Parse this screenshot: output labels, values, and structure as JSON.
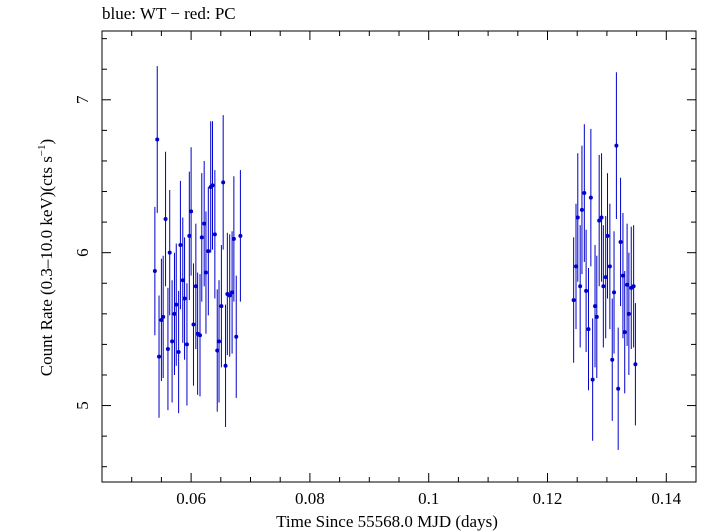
{
  "chart_data": {
    "type": "scatter",
    "title": "blue: WT − red: PC",
    "xlabel": "Time Since 55568.0 MJD (days)",
    "ylabel_prefix": "Count Rate (0.3–10.0 keV)(cts s",
    "ylabel_sup": "−1",
    "ylabel_suffix": ")",
    "xlim": [
      0.045,
      0.145
    ],
    "ylim": [
      4.5,
      7.45
    ],
    "xticks": [
      0.06,
      0.08,
      0.1,
      0.12,
      0.14
    ],
    "xtick_labels": [
      "0.06",
      "0.08",
      "0.1",
      "0.12",
      "0.14"
    ],
    "yticks": [
      5,
      6,
      7
    ],
    "ytick_labels": [
      "5",
      "6",
      "7"
    ],
    "grid": false,
    "series": [
      {
        "name": "WT",
        "color": "#0000cc",
        "x": [
          0.0539,
          0.0546,
          0.0553,
          0.0561,
          0.0568,
          0.0575,
          0.0582,
          0.0589,
          0.0597,
          0.0604,
          0.0611,
          0.0618,
          0.0625,
          0.0633,
          0.064,
          0.0647,
          0.0654,
          0.0661,
          0.0669,
          0.0676,
          0.0683,
          0.0543,
          0.055,
          0.0557,
          0.0564,
          0.0572,
          0.0579,
          0.0586,
          0.0593,
          0.06,
          0.0608,
          0.0615,
          0.0622,
          0.0629,
          0.0636,
          0.0644,
          0.0651,
          0.0658,
          0.0665,
          0.0672
        ],
        "y": [
          5.88,
          5.32,
          5.58,
          5.37,
          5.42,
          5.66,
          6.05,
          5.7,
          6.11,
          5.53,
          5.47,
          6.1,
          5.87,
          6.43,
          6.12,
          5.42,
          6.46,
          5.73,
          5.74,
          5.45,
          6.11,
          6.74,
          5.56,
          6.22,
          6.0,
          5.6,
          5.35,
          5.82,
          5.4,
          6.27,
          5.78,
          5.46,
          6.19,
          6.01,
          6.44,
          5.36,
          5.65,
          5.26,
          5.72,
          6.09
        ],
        "yerr": [
          0.42,
          0.4,
          0.4,
          0.4,
          0.4,
          0.4,
          0.42,
          0.4,
          0.42,
          0.4,
          0.4,
          0.42,
          0.4,
          0.43,
          0.42,
          0.4,
          0.44,
          0.4,
          0.4,
          0.4,
          0.43,
          0.48,
          0.4,
          0.44,
          0.41,
          0.4,
          0.4,
          0.41,
          0.4,
          0.42,
          0.41,
          0.4,
          0.41,
          0.42,
          0.42,
          0.4,
          0.4,
          0.4,
          0.4,
          0.41
        ]
      },
      {
        "name": "PC",
        "color": "#0000cc",
        "x": [
          0.1244,
          0.1251,
          0.1258,
          0.1265,
          0.1273,
          0.128,
          0.1287,
          0.1294,
          0.1301,
          0.1309,
          0.1316,
          0.1323,
          0.133,
          0.1337,
          0.1345,
          0.1248,
          0.1255,
          0.1262,
          0.1269,
          0.1276,
          0.1283,
          0.1291,
          0.1298,
          0.1305,
          0.1312,
          0.1319,
          0.1327,
          0.1334,
          0.1341,
          0.1348
        ],
        "y": [
          5.69,
          6.23,
          6.28,
          5.75,
          6.36,
          5.65,
          6.21,
          5.78,
          6.11,
          5.3,
          6.7,
          6.07,
          5.48,
          5.6,
          5.78,
          5.91,
          5.78,
          6.39,
          5.5,
          5.17,
          5.58,
          6.23,
          5.84,
          5.91,
          5.74,
          5.11,
          5.85,
          5.79,
          5.77,
          5.27
        ],
        "yerr": [
          0.41,
          0.42,
          0.42,
          0.4,
          0.45,
          0.4,
          0.43,
          0.4,
          0.41,
          0.4,
          0.48,
          0.42,
          0.4,
          0.4,
          0.4,
          0.41,
          0.4,
          0.45,
          0.4,
          0.4,
          0.4,
          0.42,
          0.4,
          0.41,
          0.4,
          0.4,
          0.41,
          0.4,
          0.4,
          0.4
        ]
      }
    ]
  }
}
